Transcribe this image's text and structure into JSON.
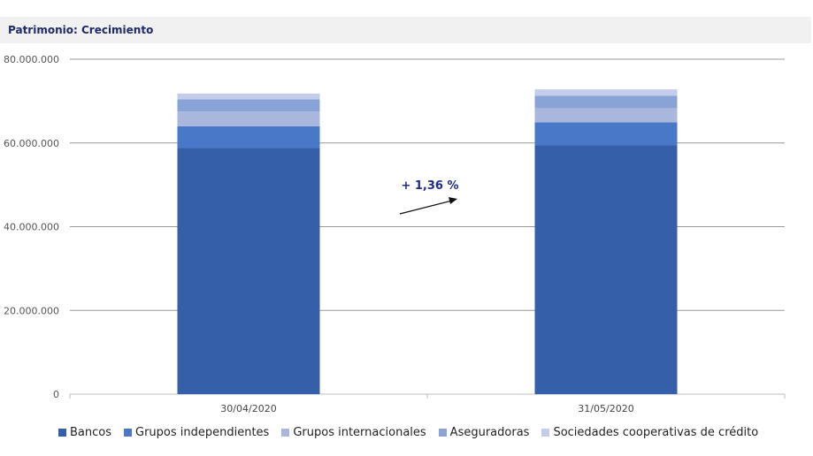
{
  "header": {
    "title": "Patrimonio: Crecimiento"
  },
  "chart_data": {
    "type": "bar",
    "stacked": true,
    "title": "Patrimonio: Crecimiento",
    "xlabel": "",
    "ylabel": "",
    "ylim": [
      0,
      80000000
    ],
    "yticks": [
      0,
      20000000,
      40000000,
      60000000,
      80000000
    ],
    "ytick_labels": [
      "0",
      "20.000.000",
      "40.000.000",
      "60.000.000",
      "80.000.000"
    ],
    "categories": [
      "30/04/2020",
      "31/05/2020"
    ],
    "series": [
      {
        "name": "Bancos",
        "color": "#355fa8",
        "values": [
          58800000,
          59500000
        ]
      },
      {
        "name": "Grupos independientes",
        "color": "#4a78c9",
        "values": [
          5200000,
          5400000
        ]
      },
      {
        "name": "Grupos internacionales",
        "color": "#a9b7dd",
        "values": [
          3500000,
          3400000
        ]
      },
      {
        "name": "Aseguradoras",
        "color": "#8aa3d6",
        "values": [
          2900000,
          3000000
        ]
      },
      {
        "name": "Sociedades cooperativas de crédito",
        "color": "#c3cceb",
        "values": [
          1400000,
          1500000
        ]
      }
    ],
    "annotation": "+ 1,36 %",
    "grid": true,
    "legend_position": "bottom-left"
  }
}
